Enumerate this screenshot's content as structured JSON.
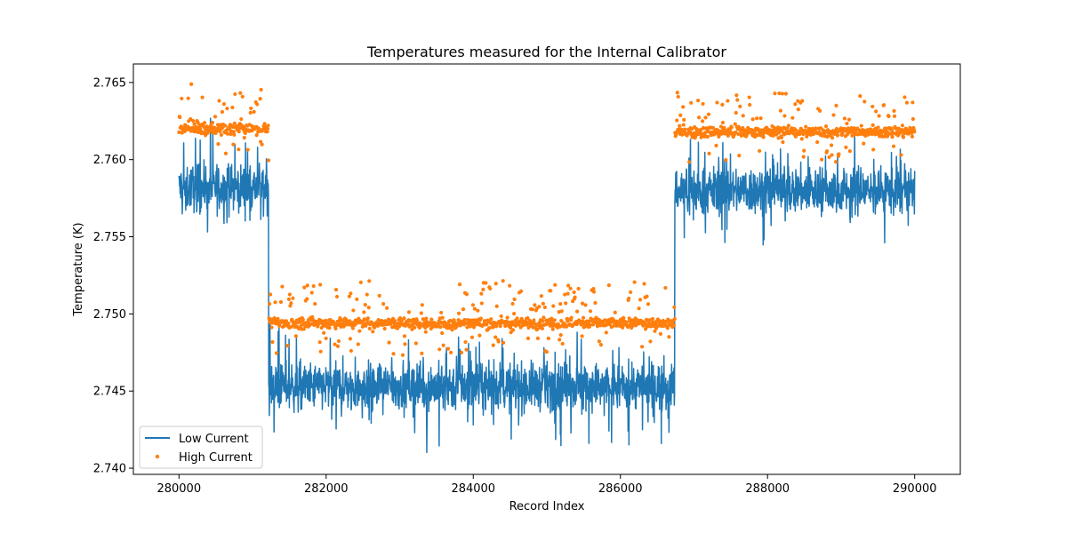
{
  "chart_data": {
    "type": "line",
    "title": "Temperatures measured for the Internal Calibrator",
    "xlabel": "Record Index",
    "ylabel": "Temperature (K)",
    "xlim": [
      279380,
      290620
    ],
    "ylim": [
      2.7396,
      2.7662
    ],
    "xticks": [
      280000,
      282000,
      284000,
      286000,
      288000,
      290000
    ],
    "xtick_labels": [
      "280000",
      "282000",
      "284000",
      "286000",
      "288000",
      "290000"
    ],
    "yticks": [
      2.74,
      2.745,
      2.75,
      2.755,
      2.76,
      2.765
    ],
    "ytick_labels": [
      "2.740",
      "2.745",
      "2.750",
      "2.755",
      "2.760",
      "2.765"
    ],
    "grid": false,
    "legend": "lower-left",
    "segments": [
      {
        "x_start": 280000,
        "x_end": 281220,
        "low_mean": 2.7582,
        "high_mean": 2.762
      },
      {
        "x_start": 281220,
        "x_end": 286740,
        "low_mean": 2.7453,
        "high_mean": 2.7494
      },
      {
        "x_start": 286740,
        "x_end": 290000,
        "low_mean": 2.758,
        "high_mean": 2.7618
      }
    ],
    "series": [
      {
        "name": "Low Current",
        "style": "line",
        "color": "#1f77b4"
      },
      {
        "name": "High Current",
        "style": "markers",
        "color": "#ff7f0e"
      }
    ]
  }
}
